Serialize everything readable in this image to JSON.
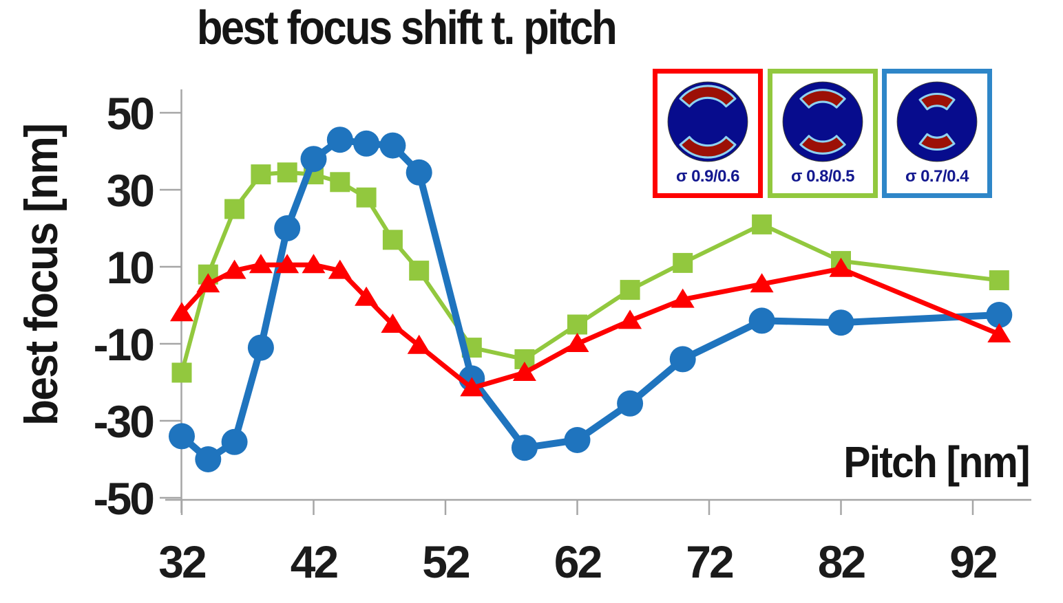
{
  "chart": {
    "title": "best focus shift t. pitch",
    "ylabel": "best focus [nm]",
    "xlabel": "Pitch [nm]"
  },
  "legend": {
    "items": [
      {
        "label": "σ 0.9/0.6",
        "box_color": "#fe0000",
        "sigma_outer": 0.9,
        "sigma_inner": 0.6,
        "pole_half_angle_deg": 50
      },
      {
        "label": "σ 0.8/0.5",
        "box_color": "#92c83e",
        "sigma_outer": 0.8,
        "sigma_inner": 0.5,
        "pole_half_angle_deg": 44
      },
      {
        "label": "σ 0.7/0.4",
        "box_color": "#2e86c8",
        "sigma_outer": 0.7,
        "sigma_inner": 0.4,
        "pole_half_angle_deg": 38
      }
    ],
    "pupil_fill": "#070c8d",
    "pole_fill": "#9c1006",
    "pole_outline": "#8fd2f0",
    "label_color": "#13188f"
  },
  "chart_data": {
    "type": "line",
    "title": "best focus shift t. pitch",
    "xlabel": "Pitch [nm]",
    "ylabel": "best focus [nm]",
    "x": [
      32,
      34,
      36,
      38,
      40,
      42,
      44,
      46,
      48,
      50,
      54,
      58,
      62,
      66,
      70,
      76,
      82,
      94
    ],
    "series": [
      {
        "name": "σ 0.9/0.6",
        "color": "#fe0000",
        "marker": "triangle",
        "values": [
          -2,
          5.5,
          9,
          10.5,
          10.5,
          10.5,
          9,
          2,
          -5,
          -10.5,
          -21.5,
          -17.5,
          -10,
          -4,
          1.5,
          5.5,
          9.5,
          -7.5
        ]
      },
      {
        "name": "σ 0.8/0.5",
        "color": "#92c83e",
        "marker": "square",
        "values": [
          -17.5,
          8,
          25,
          34,
          34.5,
          34,
          32,
          28,
          17,
          9,
          -11,
          -14,
          -5,
          4,
          11,
          21,
          11.5,
          6.5
        ]
      },
      {
        "name": "σ 0.7/0.4",
        "color": "#1f74be",
        "marker": "circle",
        "values": [
          -34,
          -40,
          -35.5,
          -11,
          20,
          38,
          43,
          42,
          41.5,
          34.5,
          -19,
          -37,
          -35,
          -25.5,
          -14,
          -4,
          -4.5,
          -2.5
        ]
      }
    ],
    "x_ticks": [
      32,
      42,
      52,
      62,
      72,
      82,
      92
    ],
    "y_ticks": [
      50,
      30,
      10,
      -10,
      -30,
      -50
    ],
    "ylim": [
      -50,
      50
    ],
    "xlim": [
      32,
      96
    ],
    "grid": false,
    "legend_position": "top-right",
    "axis_color": "#a6a6a6"
  }
}
